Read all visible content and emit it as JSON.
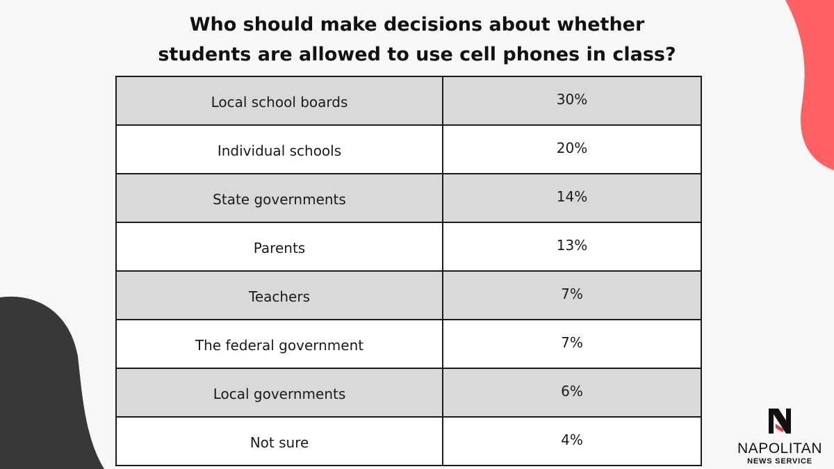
{
  "title_lines": [
    "Who should make decisions about whether",
    "students are allowed to use cell phones in class?"
  ],
  "colors": {
    "background": "#f7f7f7",
    "accent_red": "#fe6161",
    "accent_dark": "#383838",
    "row_shaded": "#d9d9d9",
    "row_plain": "#ffffff",
    "border": "#1a1a1a"
  },
  "chart_data": {
    "type": "table",
    "title": "Who should make decisions about whether students are allowed to use cell phones in class?",
    "rows": [
      {
        "label": "Local school boards",
        "value": "30%"
      },
      {
        "label": "Individual schools",
        "value": "20%"
      },
      {
        "label": "State governments",
        "value": "14%"
      },
      {
        "label": "Parents",
        "value": "13%"
      },
      {
        "label": "Teachers",
        "value": "7%"
      },
      {
        "label": "The federal government",
        "value": "7%"
      },
      {
        "label": "Local governments",
        "value": "6%"
      },
      {
        "label": "Not sure",
        "value": "4%"
      }
    ]
  },
  "logo": {
    "name": "NAPOLITAN",
    "subtitle": "NEWS SERVICE"
  }
}
